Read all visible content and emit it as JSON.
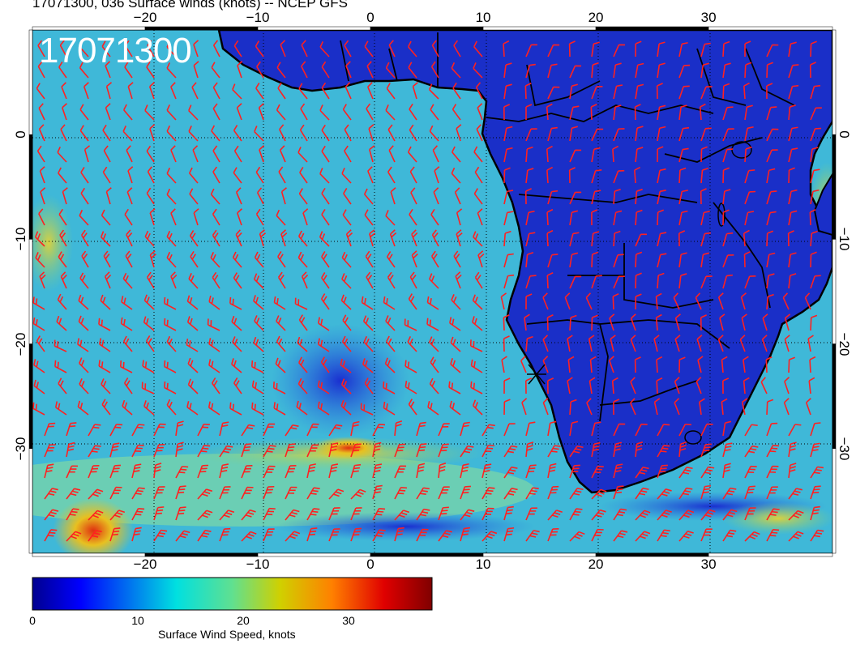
{
  "title": "17071300, 036 Surface winds (knots) -- NCEP GFS",
  "date_stamp": "17071300",
  "map": {
    "projection": "lat-lon",
    "lon_range": [
      -30,
      41
    ],
    "lat_range": [
      -40,
      10
    ],
    "lon_ticks": [
      -20,
      -10,
      0,
      10,
      20,
      30
    ],
    "lat_ticks": [
      0,
      -10,
      -20,
      -30
    ],
    "lon_tick_labels": [
      "−20",
      "−10",
      "0",
      "10",
      "20",
      "30"
    ],
    "lat_tick_labels": [
      "0",
      "−10",
      "−20",
      "−30"
    ],
    "field": "Surface wind speed (knots) with wind barbs",
    "barb_color": "#ff2020",
    "land_color": "#1a2fc8",
    "ocean_color": "#3fb8d8",
    "marker": {
      "lon": 14.5,
      "lat": -23,
      "symbol": "x"
    }
  },
  "colorbar": {
    "label": "Surface Wind Speed, knots",
    "range": [
      0,
      38
    ],
    "ticks": [
      0,
      10,
      20,
      30
    ],
    "colormap": "jet"
  }
}
